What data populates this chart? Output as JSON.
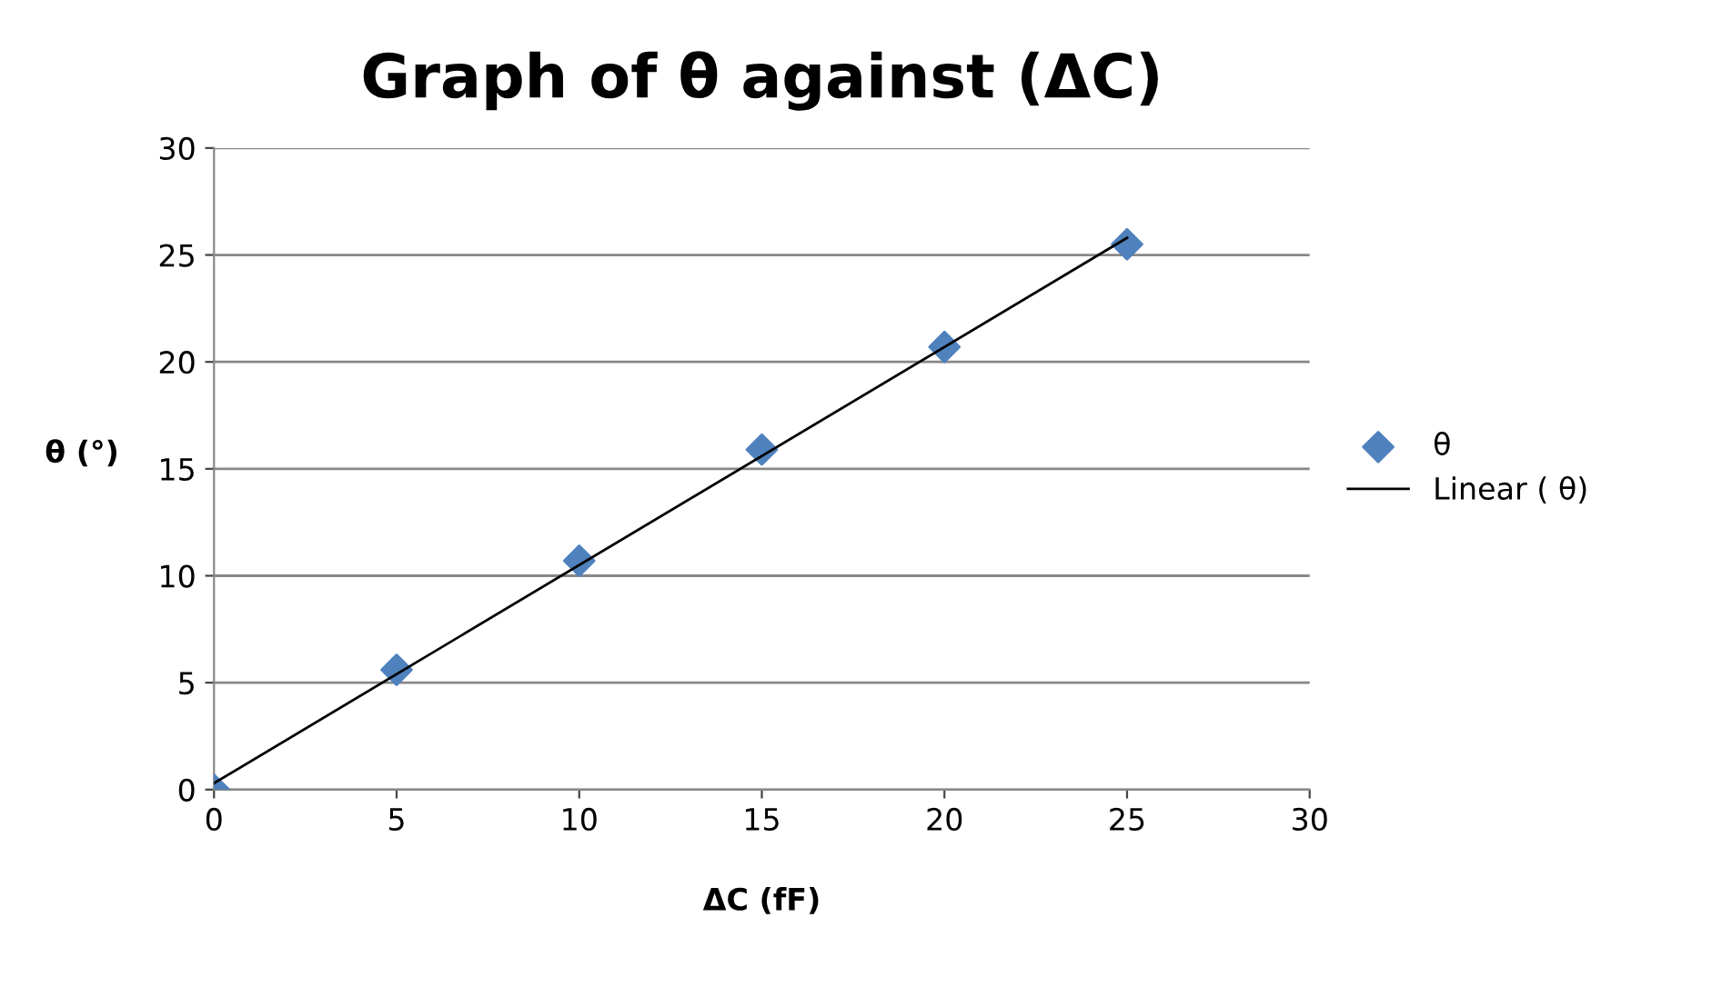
{
  "chart_data": {
    "type": "scatter",
    "title": "Graph of θ against (ΔC)",
    "xlabel": "ΔC (fF)",
    "ylabel": "θ (°)",
    "x": [
      0,
      5,
      10,
      15,
      20,
      25
    ],
    "series": [
      {
        "name": "θ",
        "color": "#4f81bd",
        "marker": "diamond",
        "values": [
          0,
          5.6,
          10.7,
          15.9,
          20.7,
          25.5
        ]
      },
      {
        "name": "Linear ( θ)",
        "type": "line",
        "color": "#000000",
        "marker": "none",
        "line_style": "solid",
        "x": [
          0,
          25
        ],
        "values": [
          0.3,
          25.8
        ]
      }
    ],
    "xlim": [
      0,
      30
    ],
    "xticks": [
      0,
      5,
      10,
      15,
      20,
      25,
      30
    ],
    "ylim": [
      0,
      30
    ],
    "yticks": [
      0,
      5,
      10,
      15,
      20,
      25,
      30
    ],
    "grid": "y",
    "legend": "right"
  }
}
